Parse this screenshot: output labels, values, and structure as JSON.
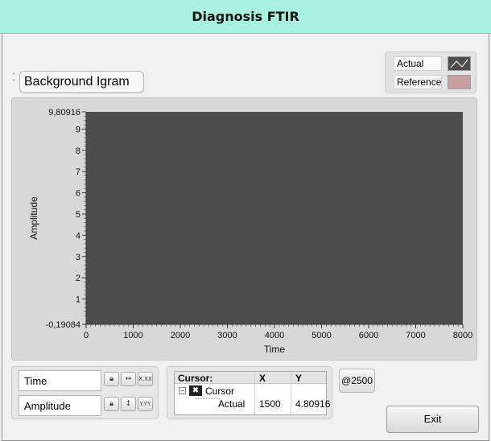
{
  "window": {
    "title": "Diagnosis FTIR"
  },
  "plot_selector": {
    "value": "Background Igram"
  },
  "legend": {
    "items": [
      {
        "label": "Actual",
        "swatch_bg": "#4d4d4d",
        "line_color": "#e8e8e8"
      },
      {
        "label": "Reference",
        "swatch_bg": "#c8a0a0"
      }
    ]
  },
  "chart_data": {
    "type": "line",
    "xlabel": "Time",
    "ylabel": "Amplitude",
    "xlim": [
      0,
      8000
    ],
    "ylim": [
      -0.19084,
      9.80916
    ],
    "x_ticks": [
      "0",
      "1000",
      "2000",
      "3000",
      "4000",
      "5000",
      "6000",
      "7000",
      "8000"
    ],
    "y_ticks": [
      {
        "value": -0.19084,
        "label": "-0,19084"
      },
      {
        "value": 1,
        "label": "1"
      },
      {
        "value": 2,
        "label": "2"
      },
      {
        "value": 3,
        "label": "3"
      },
      {
        "value": 4,
        "label": "4"
      },
      {
        "value": 5,
        "label": "5"
      },
      {
        "value": 6,
        "label": "6"
      },
      {
        "value": 7,
        "label": "7"
      },
      {
        "value": 8,
        "label": "8"
      },
      {
        "value": 9,
        "label": "9"
      },
      {
        "value": 9.80916,
        "label": "9,80916"
      }
    ],
    "plot_bg": "#4d4d4d",
    "series": []
  },
  "scales": {
    "x_name": "Time",
    "y_name": "Amplitude",
    "lock_icon": "lock-icon",
    "autoscale_x_icon": "autoscale-x-icon",
    "autoscale_y_icon": "autoscale-y-icon",
    "format_x_label": "X.XX",
    "format_y_label": "Y.YY"
  },
  "cursor_table": {
    "headers": [
      "Cursor:",
      "X",
      "Y"
    ],
    "cursor_name": "Cursor",
    "rows": [
      {
        "label": "Actual",
        "x": "1500",
        "y": "4.80916"
      }
    ]
  },
  "buttons": {
    "at_label": "@2500",
    "exit_label": "Exit"
  }
}
